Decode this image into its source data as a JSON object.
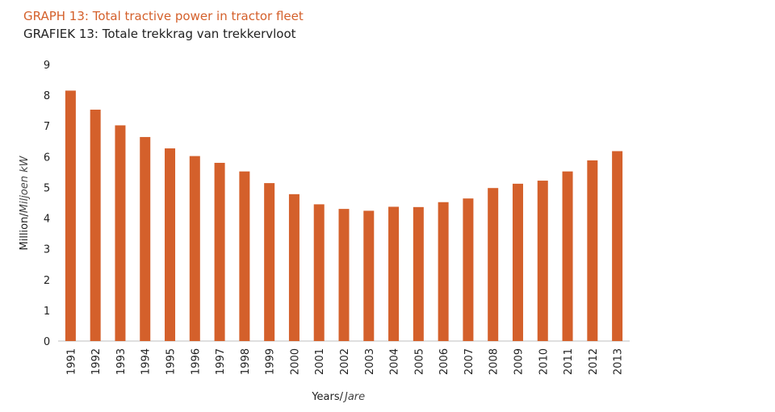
{
  "chart_data": {
    "type": "bar",
    "title": "GRAPH 13: Total tractive power in tractor fleet",
    "subtitle": "GRAFIEK 13: Totale trekkrag van trekkervloot",
    "xlabel_en": "Years/",
    "xlabel_af": "Jare",
    "ylabel_en": "Million/",
    "ylabel_af": "Miljoen kW",
    "ylim": [
      0,
      9
    ],
    "yticks": [
      0,
      1,
      2,
      3,
      4,
      5,
      6,
      7,
      8,
      9
    ],
    "grid": false,
    "color": "#d4602b",
    "categories": [
      "1991",
      "1992",
      "1993",
      "1994",
      "1995",
      "1996",
      "1997",
      "1998",
      "1999",
      "2000",
      "2001",
      "2002",
      "2003",
      "2004",
      "2005",
      "2006",
      "2007",
      "2008",
      "2009",
      "2010",
      "2011",
      "2012",
      "2013"
    ],
    "values": [
      8.15,
      7.53,
      7.02,
      6.64,
      6.27,
      6.02,
      5.8,
      5.52,
      5.14,
      4.78,
      4.45,
      4.3,
      4.24,
      4.37,
      4.36,
      4.52,
      4.64,
      4.98,
      5.12,
      5.22,
      5.52,
      5.88,
      6.18
    ]
  }
}
